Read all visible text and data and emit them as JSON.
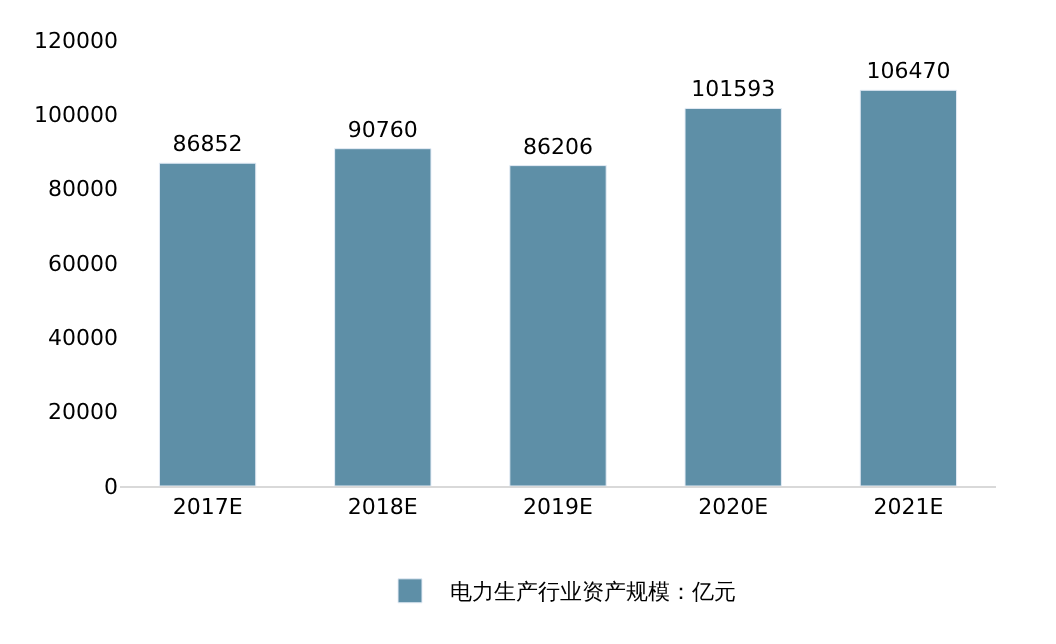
{
  "chart_data": {
    "type": "bar",
    "categories": [
      "2017E",
      "2018E",
      "2019E",
      "2020E",
      "2021E"
    ],
    "series": [
      {
        "name": "电力生产行业资产规模：亿元",
        "color": "#5e8fa7",
        "values": [
          86852,
          90760,
          86206,
          101593,
          106470
        ]
      }
    ],
    "ylim": [
      0,
      120000
    ],
    "yticks": [
      0,
      20000,
      40000,
      60000,
      80000,
      100000,
      120000
    ],
    "data_labels": true,
    "legend": "bottom"
  }
}
